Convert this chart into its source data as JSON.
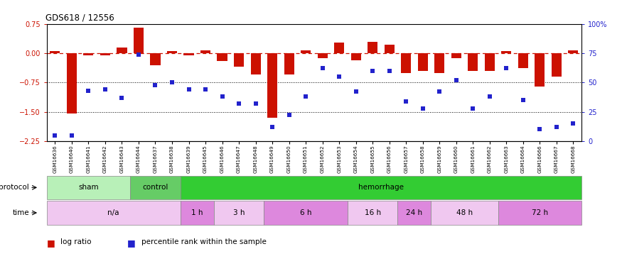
{
  "title": "GDS618 / 12556",
  "samples": [
    "GSM16636",
    "GSM16640",
    "GSM16641",
    "GSM16642",
    "GSM16643",
    "GSM16644",
    "GSM16637",
    "GSM16638",
    "GSM16639",
    "GSM16645",
    "GSM16646",
    "GSM16647",
    "GSM16648",
    "GSM16649",
    "GSM16650",
    "GSM16651",
    "GSM16652",
    "GSM16653",
    "GSM16654",
    "GSM16655",
    "GSM16656",
    "GSM16657",
    "GSM16658",
    "GSM16659",
    "GSM16660",
    "GSM16661",
    "GSM16662",
    "GSM16663",
    "GSM16664",
    "GSM16666",
    "GSM16667",
    "GSM16668"
  ],
  "log_ratio": [
    0.05,
    -1.55,
    -0.05,
    -0.05,
    0.15,
    0.65,
    -0.3,
    0.05,
    -0.05,
    0.07,
    -0.2,
    -0.35,
    -0.55,
    -1.65,
    -0.55,
    0.07,
    -0.12,
    0.28,
    -0.18,
    0.3,
    0.22,
    -0.5,
    -0.45,
    -0.5,
    -0.12,
    -0.45,
    -0.45,
    0.05,
    -0.38,
    -0.85,
    -0.6,
    0.07
  ],
  "percentile": [
    5,
    5,
    43,
    44,
    37,
    74,
    48,
    50,
    44,
    44,
    38,
    32,
    32,
    12,
    22,
    38,
    62,
    55,
    42,
    60,
    60,
    34,
    28,
    42,
    52,
    28,
    38,
    62,
    35,
    10,
    12,
    15
  ],
  "ylim_left": [
    -2.25,
    0.75
  ],
  "ylim_right": [
    0,
    100
  ],
  "yticks_left": [
    0.75,
    0.0,
    -0.75,
    -1.5,
    -2.25
  ],
  "yticks_right": [
    100,
    75,
    50,
    25,
    0
  ],
  "ytick_labels_right": [
    "100%",
    "75",
    "50",
    "25",
    "0"
  ],
  "dotted_lines": [
    -0.75,
    -1.5
  ],
  "protocol_groups": [
    {
      "label": "sham",
      "start": 0,
      "end": 5,
      "color": "#b8f0b8"
    },
    {
      "label": "control",
      "start": 5,
      "end": 8,
      "color": "#66cc66"
    },
    {
      "label": "hemorrhage",
      "start": 8,
      "end": 32,
      "color": "#33cc33"
    }
  ],
  "time_groups": [
    {
      "label": "n/a",
      "start": 0,
      "end": 8,
      "color": "#f0c8f0"
    },
    {
      "label": "1 h",
      "start": 8,
      "end": 10,
      "color": "#dd88dd"
    },
    {
      "label": "3 h",
      "start": 10,
      "end": 13,
      "color": "#f0c8f0"
    },
    {
      "label": "6 h",
      "start": 13,
      "end": 18,
      "color": "#dd88dd"
    },
    {
      "label": "16 h",
      "start": 18,
      "end": 21,
      "color": "#f0c8f0"
    },
    {
      "label": "24 h",
      "start": 21,
      "end": 23,
      "color": "#dd88dd"
    },
    {
      "label": "48 h",
      "start": 23,
      "end": 27,
      "color": "#f0c8f0"
    },
    {
      "label": "72 h",
      "start": 27,
      "end": 32,
      "color": "#dd88dd"
    }
  ],
  "bar_color": "#cc1100",
  "square_color": "#2222cc",
  "legend_items": [
    {
      "label": "log ratio",
      "color": "#cc1100"
    },
    {
      "label": "percentile rank within the sample",
      "color": "#2222cc"
    }
  ]
}
